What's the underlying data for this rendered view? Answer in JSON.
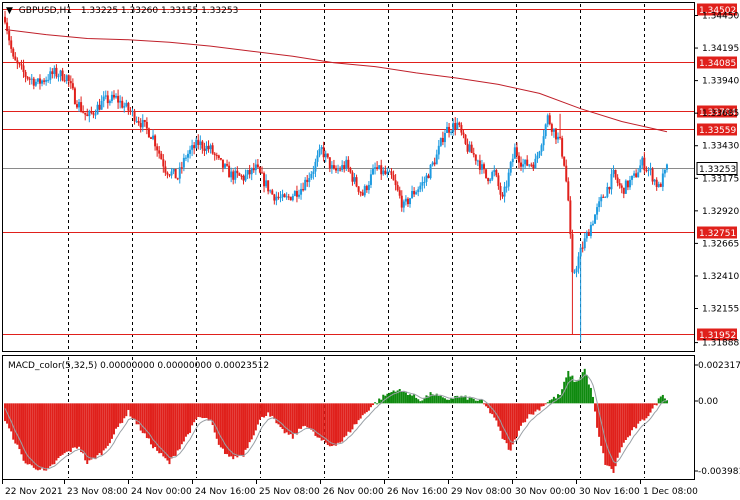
{
  "main_header": {
    "title": "GBPUSD,H1",
    "ohlc": "1.33225 1.33260 1.33155 1.33253"
  },
  "macd_header": {
    "title": "MACD_color(5,32,5) 0.00000000 0.00000000 0.00023512"
  },
  "price_scale": {
    "ticks": [
      "1.34450",
      "1.34195",
      "1.33940",
      "1.33685",
      "1.33430",
      "1.33175",
      "1.32920",
      "1.32665",
      "1.32410",
      "1.32155",
      "1.31888"
    ]
  },
  "macd_scale": {
    "ticks": [
      "0.0023175",
      "0.00",
      "-0.003981"
    ]
  },
  "time_axis": {
    "labels": [
      "22 Nov 2021",
      "23 Nov 08:00",
      "24 Nov 00:00",
      "24 Nov 16:00",
      "25 Nov 08:00",
      "26 Nov 00:00",
      "26 Nov 16:00",
      "29 Nov 08:00",
      "30 Nov 00:00",
      "30 Nov 16:00",
      "1 Dec 08:00"
    ]
  },
  "levels": [
    {
      "price": 1.34502,
      "label": "1.34502"
    },
    {
      "price": 1.34085,
      "label": "1.34085"
    },
    {
      "price": 1.33704,
      "label": "1.33704"
    },
    {
      "price": 1.33559,
      "label": "1.33559"
    },
    {
      "price": 1.32751,
      "label": "1.32751"
    },
    {
      "price": 1.31952,
      "label": "1.31952"
    }
  ],
  "current_price": {
    "price": 1.33253,
    "label": "1.33253"
  },
  "colors": {
    "bull": "#1e9be0",
    "bear": "#e0201b",
    "level": "#e0201b",
    "ma": "#c0202a",
    "macd_pos": "#0f8a0f",
    "macd_neg": "#e0201b",
    "grid": "#000000"
  },
  "chart_data": {
    "type": "candlestick",
    "symbol": "GBPUSD",
    "timeframe": "H1",
    "price_range": [
      1.3183,
      1.3454
    ],
    "macd_range": [
      -0.00435,
      0.0027
    ],
    "price_path": [
      [
        0,
        1.3444
      ],
      [
        4,
        1.341
      ],
      [
        10,
        1.3398
      ],
      [
        16,
        1.3392
      ],
      [
        24,
        1.34
      ],
      [
        30,
        1.3397
      ],
      [
        34,
        1.338
      ],
      [
        40,
        1.3365
      ],
      [
        48,
        1.3378
      ],
      [
        54,
        1.338
      ],
      [
        58,
        1.3374
      ],
      [
        64,
        1.3365
      ],
      [
        72,
        1.335
      ],
      [
        78,
        1.3325
      ],
      [
        84,
        1.3318
      ],
      [
        88,
        1.3335
      ],
      [
        94,
        1.3345
      ],
      [
        100,
        1.334
      ],
      [
        104,
        1.333
      ],
      [
        110,
        1.332
      ],
      [
        116,
        1.3318
      ],
      [
        122,
        1.3325
      ],
      [
        130,
        1.3305
      ],
      [
        136,
        1.33
      ],
      [
        144,
        1.331
      ],
      [
        150,
        1.3325
      ],
      [
        154,
        1.334
      ],
      [
        160,
        1.3322
      ],
      [
        166,
        1.3328
      ],
      [
        170,
        1.3315
      ],
      [
        174,
        1.3305
      ],
      [
        180,
        1.3325
      ],
      [
        188,
        1.3318
      ],
      [
        194,
        1.3295
      ],
      [
        198,
        1.3305
      ],
      [
        204,
        1.3315
      ],
      [
        210,
        1.3335
      ],
      [
        214,
        1.3355
      ],
      [
        220,
        1.336
      ],
      [
        224,
        1.3343
      ],
      [
        230,
        1.3332
      ],
      [
        234,
        1.3318
      ],
      [
        238,
        1.3322
      ],
      [
        242,
        1.33
      ],
      [
        248,
        1.334
      ],
      [
        252,
        1.3328
      ],
      [
        258,
        1.333
      ],
      [
        264,
        1.3365
      ],
      [
        270,
        1.3345
      ],
      [
        272,
        1.333
      ],
      [
        274,
        1.33
      ],
      [
        276,
        1.324
      ],
      [
        280,
        1.326
      ],
      [
        286,
        1.3285
      ],
      [
        290,
        1.33
      ],
      [
        296,
        1.332
      ],
      [
        300,
        1.3308
      ],
      [
        306,
        1.3318
      ],
      [
        310,
        1.333
      ],
      [
        314,
        1.3322
      ],
      [
        318,
        1.331
      ],
      [
        322,
        1.3325
      ]
    ],
    "moving_average": [
      [
        0,
        1.3434
      ],
      [
        20,
        1.343
      ],
      [
        40,
        1.3427
      ],
      [
        60,
        1.3426
      ],
      [
        80,
        1.3424
      ],
      [
        100,
        1.3421
      ],
      [
        120,
        1.3417
      ],
      [
        140,
        1.3413
      ],
      [
        160,
        1.3408
      ],
      [
        180,
        1.3405
      ],
      [
        200,
        1.34
      ],
      [
        220,
        1.3396
      ],
      [
        240,
        1.3391
      ],
      [
        260,
        1.3384
      ],
      [
        280,
        1.3372
      ],
      [
        300,
        1.3362
      ],
      [
        322,
        1.3354
      ]
    ],
    "macd_path": [
      [
        0,
        -0.001
      ],
      [
        10,
        -0.0035
      ],
      [
        20,
        -0.004
      ],
      [
        28,
        -0.003
      ],
      [
        36,
        -0.0025
      ],
      [
        40,
        -0.0035
      ],
      [
        48,
        -0.0028
      ],
      [
        56,
        -0.0012
      ],
      [
        60,
        -0.0005
      ],
      [
        66,
        -0.0015
      ],
      [
        72,
        -0.0025
      ],
      [
        76,
        -0.003
      ],
      [
        80,
        -0.0035
      ],
      [
        88,
        -0.002
      ],
      [
        94,
        -0.0008
      ],
      [
        100,
        -0.001
      ],
      [
        104,
        -0.0025
      ],
      [
        110,
        -0.0032
      ],
      [
        116,
        -0.003
      ],
      [
        124,
        -0.001
      ],
      [
        128,
        -0.0005
      ],
      [
        134,
        -0.0015
      ],
      [
        140,
        -0.002
      ],
      [
        146,
        -0.0012
      ],
      [
        152,
        -0.002
      ],
      [
        158,
        -0.0025
      ],
      [
        164,
        -0.0022
      ],
      [
        172,
        -0.001
      ],
      [
        178,
        -0.0002
      ],
      [
        184,
        0.0004
      ],
      [
        190,
        0.0008
      ],
      [
        196,
        0.0006
      ],
      [
        202,
        0.0002
      ],
      [
        208,
        0.0006
      ],
      [
        214,
        0.0002
      ],
      [
        220,
        0.0004
      ],
      [
        226,
        0.0003
      ],
      [
        232,
        0.0001
      ],
      [
        238,
        -0.0008
      ],
      [
        242,
        -0.002
      ],
      [
        246,
        -0.0028
      ],
      [
        250,
        -0.0015
      ],
      [
        254,
        -0.0008
      ],
      [
        258,
        -0.0005
      ],
      [
        264,
        0.0001
      ],
      [
        270,
        0.0005
      ],
      [
        274,
        0.0018
      ],
      [
        278,
        0.0012
      ],
      [
        282,
        0.002
      ],
      [
        286,
        0.0004
      ],
      [
        288,
        -0.0015
      ],
      [
        292,
        -0.0035
      ],
      [
        296,
        -0.004
      ],
      [
        300,
        -0.0025
      ],
      [
        306,
        -0.0015
      ],
      [
        312,
        -0.0008
      ],
      [
        316,
        -0.0002
      ],
      [
        320,
        0.0006
      ],
      [
        322,
        0.0002
      ]
    ]
  }
}
